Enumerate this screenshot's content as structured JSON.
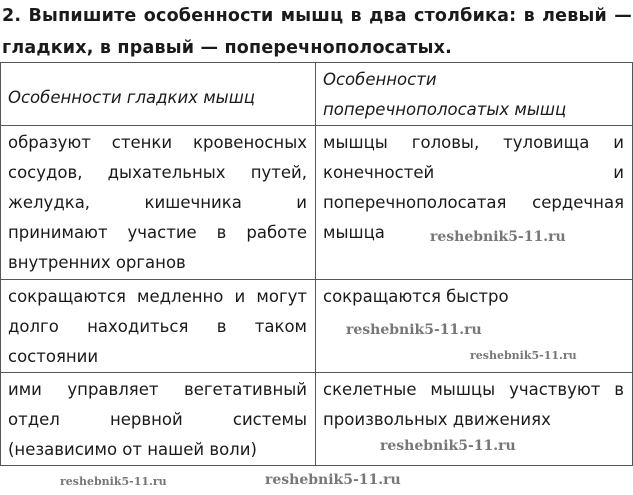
{
  "task": {
    "title": "2. Выпишите особенности мышц в два столбика: в левый — гладких, в правый — поперечнополосатых."
  },
  "table": {
    "headers": [
      "Особенности гладких мышц",
      "Особенности поперечнополосатых мышц"
    ],
    "rows": [
      [
        "образуют стенки кровеносных сосудов, дыхательных путей, желудка, кишечника и принимают участие в работе внутренних органов",
        "мышцы головы, туловища и конечностей и поперечнополосатая сердечная мышца"
      ],
      [
        "сокращаются медленно и могут долго находиться в таком состоянии",
        "сокращаются быстро"
      ],
      [
        "ими управляет вегетативный отдел нервной системы (независимо от нашей воли)",
        "скелетные мышцы участвуют в произвольных движениях"
      ]
    ]
  },
  "watermark": "reshebnik5-11.ru"
}
